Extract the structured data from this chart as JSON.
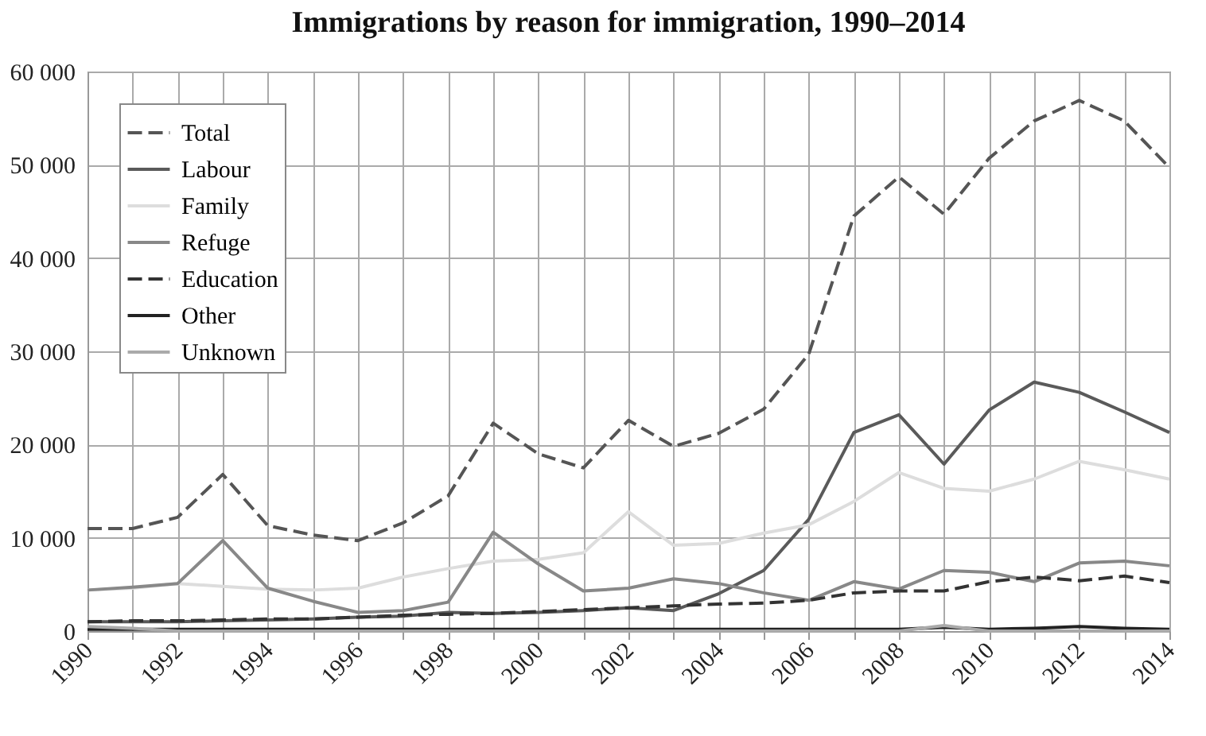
{
  "chart_data": {
    "type": "line",
    "title": "Immigrations by reason for immigration, 1990–2014",
    "x": [
      1990,
      1991,
      1992,
      1993,
      1994,
      1995,
      1996,
      1997,
      1998,
      1999,
      2000,
      2001,
      2002,
      2003,
      2004,
      2005,
      2006,
      2007,
      2008,
      2009,
      2010,
      2011,
      2012,
      2013,
      2014
    ],
    "series": [
      {
        "name": "Total",
        "color": "#555555",
        "line_style": "dashed",
        "values": [
          11000,
          11000,
          12200,
          16800,
          11300,
          10300,
          9700,
          11600,
          14500,
          22300,
          19000,
          17500,
          22600,
          19800,
          21200,
          23800,
          29700,
          44500,
          48700,
          44700,
          50700,
          54700,
          56900,
          54700,
          49700
        ]
      },
      {
        "name": "Labour",
        "color": "#5a5a5a",
        "line_style": "solid",
        "values": [
          1000,
          1000,
          1000,
          1100,
          1200,
          1300,
          1500,
          1600,
          2000,
          1900,
          2000,
          2200,
          2500,
          2200,
          4000,
          6500,
          12000,
          21300,
          23200,
          17900,
          23700,
          26700,
          25600,
          23500,
          21300
        ]
      },
      {
        "name": "Family",
        "color": "#dddddd",
        "line_style": "solid",
        "values": [
          4400,
          4600,
          5100,
          4800,
          4500,
          4400,
          4600,
          5800,
          6700,
          7500,
          7700,
          8400,
          12800,
          9200,
          9400,
          10500,
          11400,
          13900,
          17000,
          15300,
          15000,
          16300,
          18200,
          17300,
          16300
        ]
      },
      {
        "name": "Refuge",
        "color": "#888888",
        "line_style": "solid",
        "values": [
          4400,
          4700,
          5100,
          9700,
          4600,
          3200,
          2000,
          2200,
          3100,
          10600,
          7200,
          4300,
          4600,
          5600,
          5100,
          4100,
          3300,
          5300,
          4500,
          6500,
          6300,
          5300,
          7300,
          7500,
          7000
        ]
      },
      {
        "name": "Education",
        "color": "#333333",
        "line_style": "dashed",
        "values": [
          1000,
          1100,
          1100,
          1200,
          1300,
          1300,
          1500,
          1700,
          1800,
          1900,
          2100,
          2300,
          2500,
          2700,
          2900,
          3000,
          3300,
          4100,
          4300,
          4300,
          5300,
          5800,
          5400,
          5900,
          5200
        ]
      },
      {
        "name": "Other",
        "color": "#222222",
        "line_style": "solid",
        "values": [
          200,
          200,
          200,
          200,
          200,
          200,
          200,
          200,
          200,
          200,
          200,
          200,
          200,
          200,
          200,
          200,
          200,
          200,
          200,
          400,
          200,
          300,
          500,
          300,
          200
        ]
      },
      {
        "name": "Unknown",
        "color": "#aaaaaa",
        "line_style": "solid",
        "values": [
          500,
          300,
          0,
          0,
          0,
          0,
          0,
          0,
          0,
          0,
          0,
          0,
          0,
          0,
          0,
          0,
          0,
          0,
          0,
          600,
          0,
          0,
          0,
          0,
          0
        ]
      }
    ],
    "xlim": [
      1990,
      2014
    ],
    "xticks": [
      1990,
      {
        "value": 1991,
        "label": null
      },
      1992,
      {
        "value": 1993,
        "label": null
      },
      1994,
      {
        "value": 1995,
        "label": null
      },
      1996,
      {
        "value": 1997,
        "label": null
      },
      1998,
      {
        "value": 1999,
        "label": null
      },
      2000,
      {
        "value": 2001,
        "label": null
      },
      2002,
      {
        "value": 2003,
        "label": null
      },
      2004,
      {
        "value": 2005,
        "label": null
      },
      2006,
      {
        "value": 2007,
        "label": null
      },
      2008,
      {
        "value": 2009,
        "label": null
      },
      2010,
      {
        "value": 2011,
        "label": null
      },
      2012,
      {
        "value": 2013,
        "label": null
      },
      2014
    ],
    "ylim": [
      0,
      60000
    ],
    "yticks": [
      0,
      {
        "value": 10000,
        "label": "10 000"
      },
      {
        "value": 20000,
        "label": "20 000"
      },
      {
        "value": 30000,
        "label": "30 000"
      },
      {
        "value": 40000,
        "label": "40 000"
      },
      {
        "value": 50000,
        "label": "50 000"
      },
      {
        "value": 60000,
        "label": "60 000"
      }
    ],
    "grid": true,
    "legend": "top left",
    "marker": "none"
  }
}
